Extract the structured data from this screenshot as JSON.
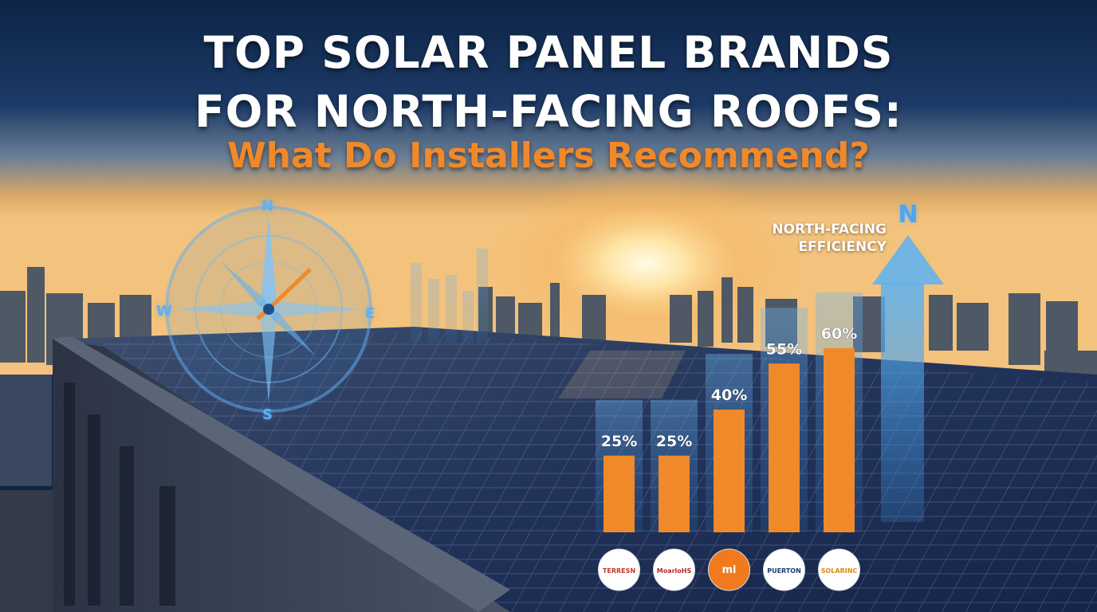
{
  "header": {
    "title_line1": "TOP SOLAR PANEL BRANDS",
    "title_line2": "FOR NORTH-FACING ROOFS:",
    "subtitle": "What Do Installers Recommend?"
  },
  "compass": {
    "north": "N",
    "west": "W",
    "east": "E",
    "south": "S"
  },
  "efficiency_label": {
    "line1": "NORTH-FACING",
    "line2": "EFFICIENCY",
    "arrow_letter": "N"
  },
  "colors": {
    "accent_orange": "#f0892a",
    "accent_blue": "#4aa6f0",
    "title_white": "#ffffff"
  },
  "chart_data": {
    "type": "bar",
    "title": "NORTH-FACING EFFICIENCY",
    "categories": [
      "TERRESN",
      "MoarloHS",
      "mi",
      "PUERTON",
      "SOLARINC"
    ],
    "values": [
      25,
      25,
      40,
      55,
      60
    ],
    "value_labels": [
      "25%",
      "25%",
      "40%",
      "55%",
      "60%"
    ],
    "ylim": [
      0,
      100
    ],
    "grid": false,
    "bar_color": "#f0892a"
  }
}
